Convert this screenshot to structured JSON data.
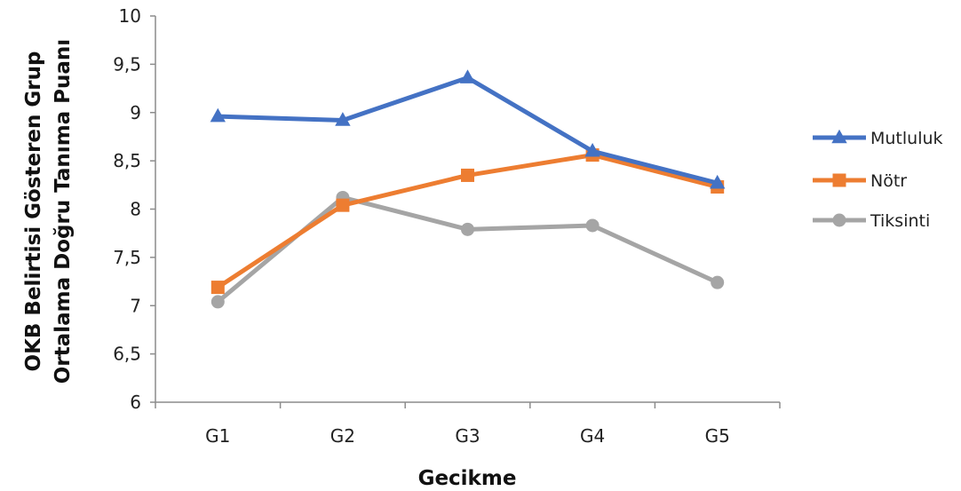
{
  "chart_data": {
    "type": "line",
    "categories": [
      "G1",
      "G2",
      "G3",
      "G4",
      "G5"
    ],
    "series": [
      {
        "name": "Mutluluk",
        "values": [
          8.96,
          8.92,
          9.36,
          8.6,
          8.27
        ],
        "color": "#4472C4",
        "marker": "triangle"
      },
      {
        "name": "Nötr",
        "values": [
          7.19,
          8.04,
          8.35,
          8.56,
          8.23
        ],
        "color": "#ED7D31",
        "marker": "square"
      },
      {
        "name": "Tiksinti",
        "values": [
          7.04,
          8.12,
          7.79,
          7.83,
          7.24
        ],
        "color": "#A5A5A5",
        "marker": "circle"
      }
    ],
    "xlabel": "Gecikme",
    "ylabel_lines": [
      "OKB Belirtisi Gösteren Grup",
      "Ortalama Doğru Tanıma Puanı"
    ],
    "ylim": [
      6,
      10
    ],
    "yticks": [
      "6",
      "6,5",
      "7",
      "7,5",
      "8",
      "8,5",
      "9",
      "9,5",
      "10"
    ],
    "grid": false,
    "legend_position": "right"
  }
}
